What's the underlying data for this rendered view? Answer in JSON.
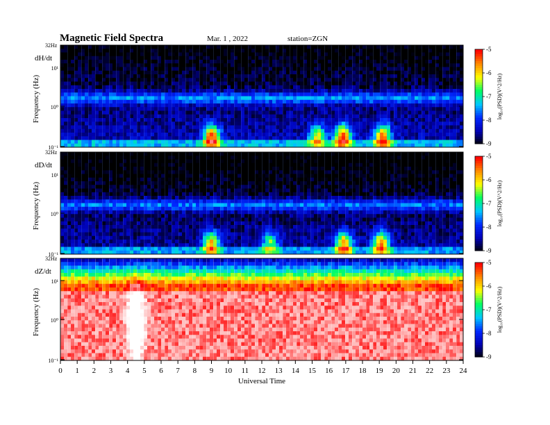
{
  "header": {
    "title": "Magnetic  Field  Spectra",
    "date": "Mar. 1  , 2022",
    "station": "station=ZGN"
  },
  "colors": {
    "scale": [
      "#000000",
      "#0000b4",
      "#0028ff",
      "#00c8ff",
      "#00ff64",
      "#ffff00",
      "#ff8c00",
      "#ff0000",
      "#ffb4b4",
      "#ffffff"
    ]
  },
  "chart_data": {
    "type": "heatmap",
    "xlabel": "Universal Time",
    "x_ticks": [
      "0",
      "1",
      "2",
      "3",
      "4",
      "5",
      "6",
      "7",
      "8",
      "9",
      "10",
      "11",
      "12",
      "13",
      "14",
      "15",
      "16",
      "17",
      "18",
      "19",
      "20",
      "21",
      "22",
      "23",
      "24"
    ],
    "xlim": [
      0,
      24
    ],
    "colorbar": {
      "label": "log₁₀(PSD)(V^2/Hz)",
      "ticks": [
        "-5",
        "-6",
        "-7",
        "-8",
        "-9"
      ],
      "range": [
        -9,
        -5
      ]
    },
    "panels": [
      {
        "name": "dH/dt",
        "ylabel": "Frequency  (Hz)",
        "ytop": "32Hz",
        "yticks": [
          "10¹",
          "10⁰",
          "10⁻¹"
        ],
        "background_level": -8.3,
        "events": [
          {
            "t": 9.0,
            "level": -6.3
          },
          {
            "t": 15.3,
            "level": -7.2
          },
          {
            "t": 16.8,
            "level": -6.3
          },
          {
            "t": 19.2,
            "level": -6.4
          }
        ]
      },
      {
        "name": "dD/dt",
        "ylabel": "Frequency  (Hz)",
        "ytop": "32Hz",
        "yticks": [
          "10¹",
          "10⁰",
          "10⁻¹"
        ],
        "background_level": -8.4,
        "events": [
          {
            "t": 9.0,
            "level": -6.8
          },
          {
            "t": 12.5,
            "level": -7.6
          },
          {
            "t": 16.9,
            "level": -6.6
          },
          {
            "t": 19.1,
            "level": -6.6
          }
        ]
      },
      {
        "name": "dZ/dt",
        "ylabel": "Frequency  (Hz)",
        "ytop": "32Hz",
        "yticks": [
          "10¹",
          "10⁰",
          "10⁻¹"
        ],
        "background_level": -5.3,
        "events": [
          {
            "t": 4.5,
            "level": -4.8
          }
        ]
      }
    ]
  }
}
